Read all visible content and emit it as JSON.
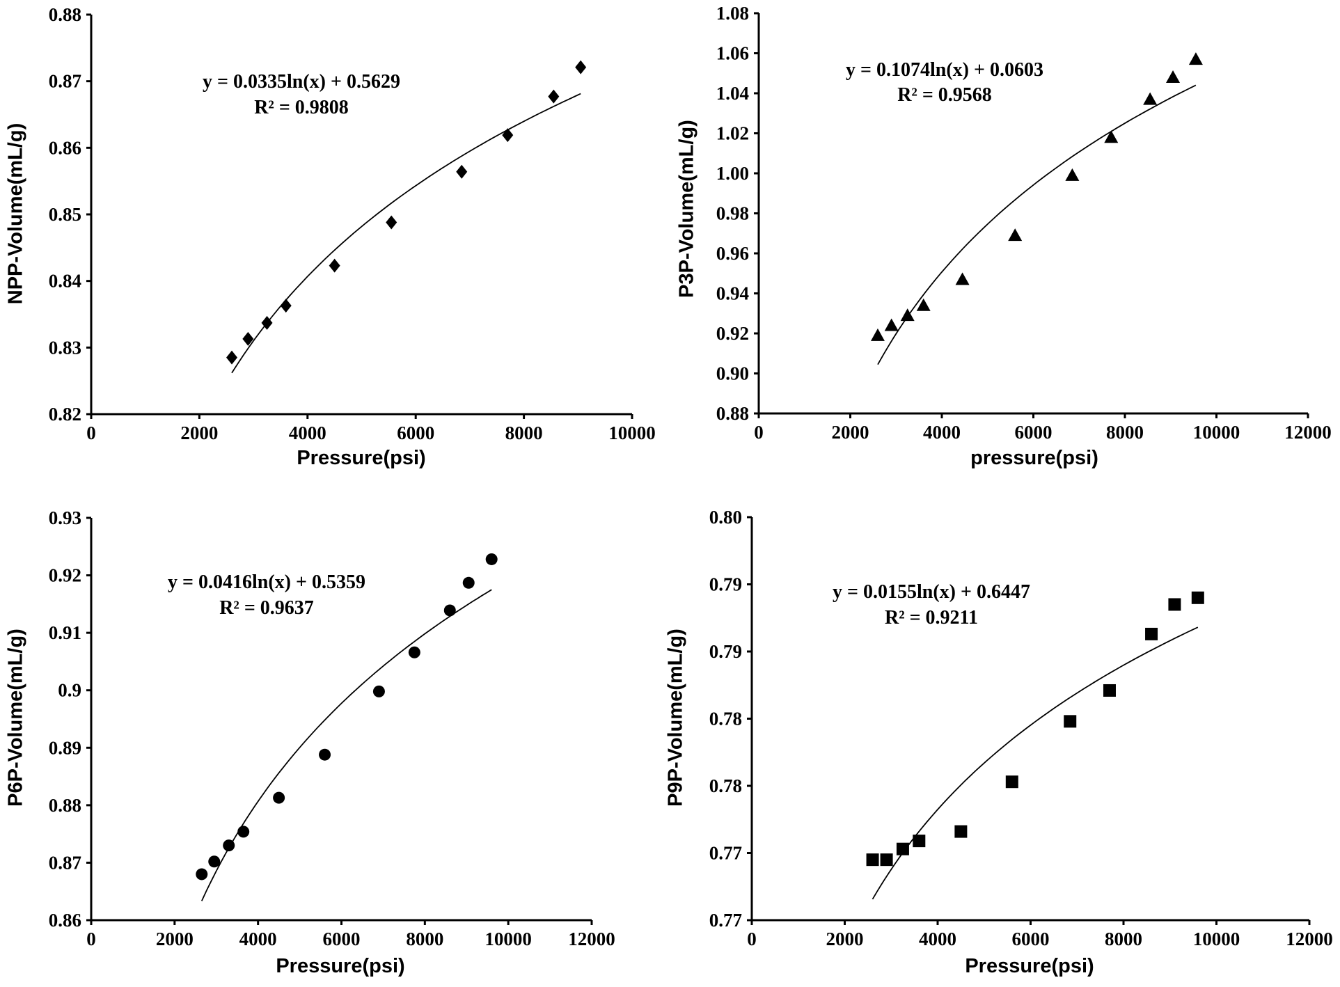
{
  "chart_data": [
    {
      "type": "scatter",
      "xlabel": "Pressure(psi)",
      "ylabel": "NPP-Volume(mL/g)",
      "xlim": [
        0,
        10000
      ],
      "ylim": [
        0.82,
        0.88
      ],
      "xticks": [
        "0",
        "2000",
        "4000",
        "6000",
        "8000",
        "10000"
      ],
      "yticks": [
        "0.82",
        "0.83",
        "0.84",
        "0.85",
        "0.86",
        "0.87",
        "0.88"
      ],
      "marker": "diamond",
      "equation": "y = 0.0335ln(x)  + 0.5629",
      "r2": "R² = 0.9808",
      "trend": {
        "a": 0.0335,
        "b": 0.5629
      },
      "x": [
        2600,
        2900,
        3250,
        3600,
        4500,
        5550,
        6850,
        7700,
        8550,
        9050
      ],
      "y": [
        0.8285,
        0.8313,
        0.8337,
        0.8363,
        0.8423,
        0.8488,
        0.8564,
        0.8619,
        0.8677,
        0.8721
      ],
      "grid": false
    },
    {
      "type": "scatter",
      "xlabel": "pressure(psi)",
      "ylabel": "P3P-Volume(mL/g)",
      "xlim": [
        0,
        12000
      ],
      "ylim": [
        0.88,
        1.08
      ],
      "xticks": [
        "0",
        "2000",
        "4000",
        "6000",
        "8000",
        "10000",
        "12000"
      ],
      "yticks": [
        "0.88",
        "0.90",
        "0.92",
        "0.94",
        "0.96",
        "0.98",
        "1.00",
        "1.02",
        "1.04",
        "1.06",
        "1.08"
      ],
      "marker": "triangle",
      "equation": "y = 0.1074ln(x)  + 0.0603",
      "r2": "R² = 0.9568",
      "trend": {
        "a": 0.1074,
        "b": 0.0603
      },
      "x": [
        2600,
        2900,
        3250,
        3600,
        4450,
        5600,
        6850,
        7700,
        8550,
        9050,
        9550
      ],
      "y": [
        0.919,
        0.924,
        0.929,
        0.934,
        0.947,
        0.969,
        0.999,
        1.018,
        1.037,
        1.048,
        1.057
      ],
      "grid": false
    },
    {
      "type": "scatter",
      "xlabel": "Pressure(psi)",
      "ylabel": "P6P-Volume(mL/g)",
      "xlim": [
        0,
        12000
      ],
      "ylim": [
        0.86,
        0.93
      ],
      "xticks": [
        "0",
        "2000",
        "4000",
        "6000",
        "8000",
        "10000",
        "12000"
      ],
      "yticks": [
        "0.86",
        "0.87",
        "0.88",
        "0.89",
        "0.9",
        "0.91",
        "0.92",
        "0.93"
      ],
      "marker": "circle",
      "equation": "y = 0.0416ln(x)  + 0.5359",
      "r2": "R² = 0.9637",
      "trend": {
        "a": 0.0416,
        "b": 0.5359
      },
      "x": [
        2650,
        2950,
        3300,
        3650,
        4500,
        5600,
        6900,
        7750,
        8600,
        9050,
        9600
      ],
      "y": [
        0.868,
        0.8702,
        0.873,
        0.8754,
        0.8813,
        0.8888,
        0.8998,
        0.9066,
        0.9139,
        0.9187,
        0.9228
      ],
      "grid": false
    },
    {
      "type": "scatter",
      "xlabel": "Pressure(psi)",
      "ylabel": "P9P-Volume(mL/g)",
      "xlim": [
        0,
        12000
      ],
      "ylim": [
        0.77,
        0.8
      ],
      "xticks": [
        "0",
        "2000",
        "4000",
        "6000",
        "8000",
        "10000",
        "12000"
      ],
      "yticks": [
        "0.77",
        "0.77",
        "0.78",
        "0.78",
        "0.79",
        "0.79",
        "0.80"
      ],
      "marker": "square",
      "equation": "y = 0.0155ln(x)  + 0.6447",
      "r2": "R² = 0.9211",
      "trend": {
        "a": 0.0155,
        "b": 0.6447
      },
      "x": [
        2600,
        2900,
        3250,
        3600,
        4500,
        5600,
        6850,
        7700,
        8600,
        9100,
        9600
      ],
      "y": [
        0.7745,
        0.7745,
        0.7753,
        0.7759,
        0.7766,
        0.7803,
        0.7848,
        0.7871,
        0.7913,
        0.7935,
        0.794
      ],
      "grid": false
    }
  ]
}
